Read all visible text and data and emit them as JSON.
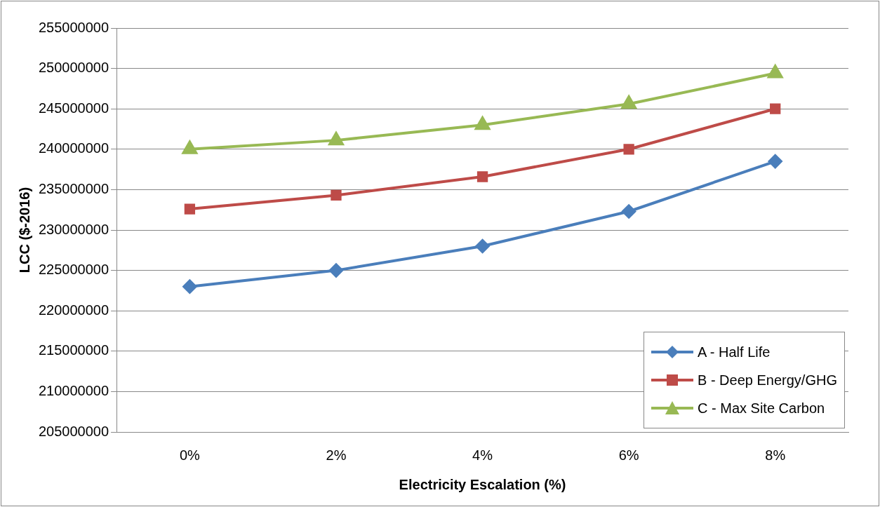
{
  "chart_data": {
    "type": "line",
    "xlabel": "Electricity Escalation (%)",
    "ylabel": "LCC ($-2016)",
    "categories": [
      "0%",
      "2%",
      "4%",
      "6%",
      "8%"
    ],
    "series": [
      {
        "name": "A - Half Life",
        "color": "#4a7ebb",
        "marker": "diamond",
        "values": [
          223000000,
          225000000,
          228000000,
          232300000,
          238500000
        ]
      },
      {
        "name": "B - Deep Energy/GHG",
        "color": "#be4b48",
        "marker": "square",
        "values": [
          232600000,
          234300000,
          236600000,
          240000000,
          245000000
        ]
      },
      {
        "name": "C - Max Site Carbon",
        "color": "#98b954",
        "marker": "triangle",
        "values": [
          240000000,
          241100000,
          243000000,
          245600000,
          249400000
        ]
      }
    ],
    "ylim": [
      205000000,
      255000000
    ],
    "yticks": [
      205000000,
      210000000,
      215000000,
      220000000,
      225000000,
      230000000,
      235000000,
      240000000,
      245000000,
      250000000,
      255000000
    ],
    "grid": "y",
    "legend": "bottom right",
    "line_style": "solid"
  }
}
